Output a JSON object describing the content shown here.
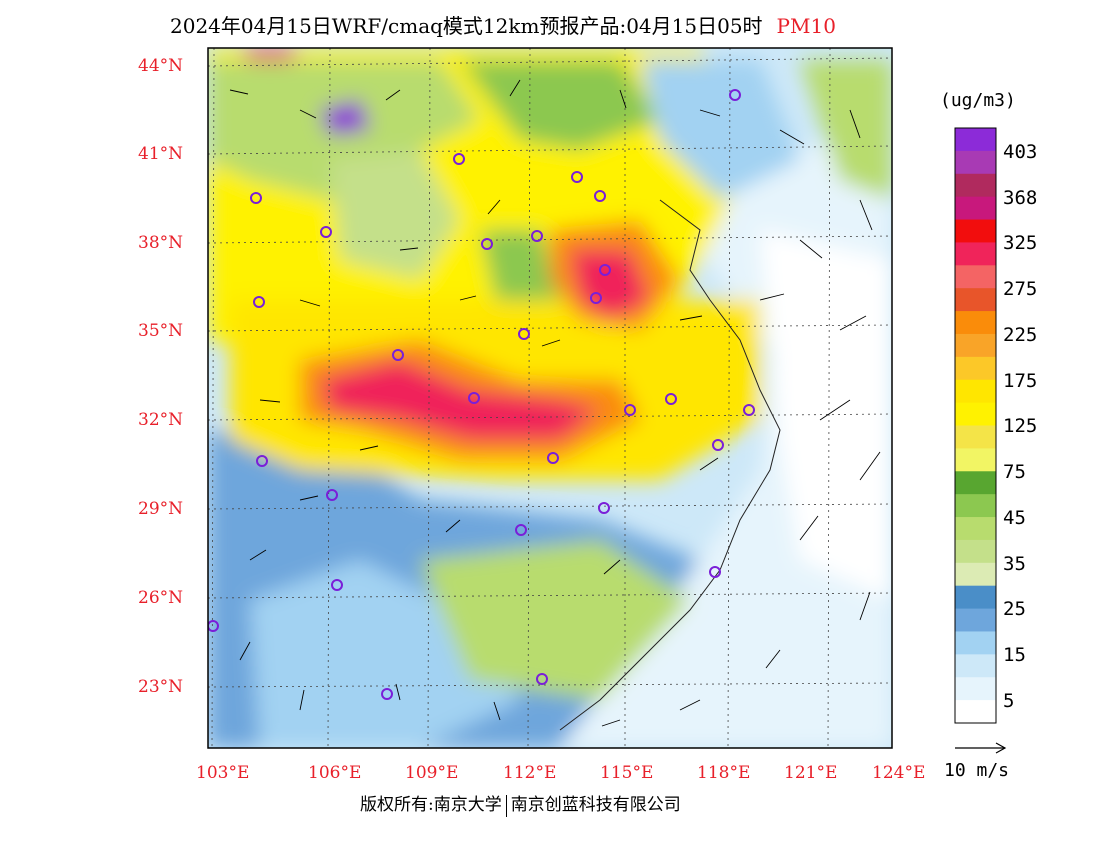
{
  "title": {
    "text": "2024年04月15日WRF/cmaq模式12km预报产品:04月15日05时",
    "variable": "PM10"
  },
  "map": {
    "lat_labels": [
      "44°N",
      "41°N",
      "38°N",
      "35°N",
      "32°N",
      "29°N",
      "26°N",
      "23°N"
    ],
    "lon_labels": [
      "103°E",
      "106°E",
      "109°E",
      "112°E",
      "115°E",
      "118°E",
      "121°E",
      "124°E"
    ]
  },
  "colorbar": {
    "unit": "(ug/m3)",
    "labels": [
      "403",
      "368",
      "325",
      "275",
      "225",
      "175",
      "125",
      "75",
      "45",
      "35",
      "25",
      "15",
      "5"
    ],
    "colors": [
      "#8c2bd8",
      "#a83ab4",
      "#b02a5e",
      "#c8187c",
      "#f20d0d",
      "#f0245a",
      "#f46464",
      "#e8552a",
      "#fa8c0a",
      "#f9a428",
      "#fcc828",
      "#ffe600",
      "#fff200",
      "#f4e448",
      "#f2f564",
      "#58a630",
      "#8cc850",
      "#b8dc6e",
      "#c4e08a",
      "#dcebb4",
      "#4a8ec8",
      "#6ea6dc",
      "#a2d2f2",
      "#cde8f8",
      "#e6f4fc",
      "#ffffff"
    ]
  },
  "vector_reference": "10 m/s",
  "footer": {
    "left": "版权所有:南京大学",
    "right": "南京创蓝科技有限公司"
  }
}
